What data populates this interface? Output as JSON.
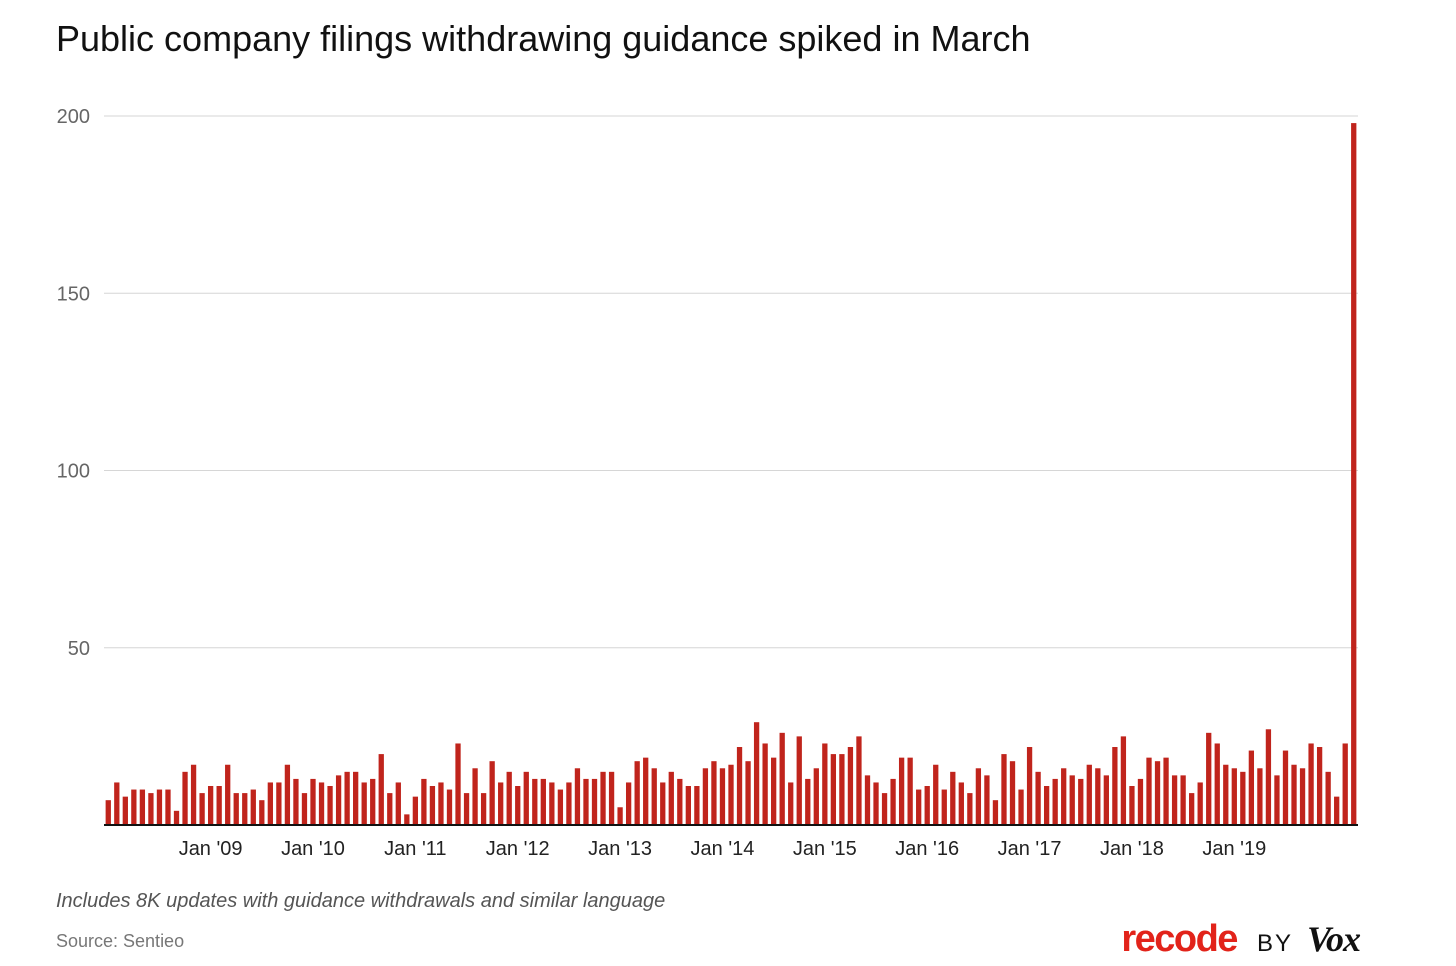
{
  "chart_data": {
    "type": "bar",
    "title": "Public company filings withdrawing guidance spiked in March",
    "xlabel": "",
    "ylabel": "",
    "ylim": [
      0,
      200
    ],
    "yticks": [
      50,
      100,
      150,
      200
    ],
    "grid": true,
    "legend": "none",
    "bar_color": "#c0241c",
    "x_start": "2008-01",
    "x_end": "2020-03",
    "xtick_labels": [
      "Jan '09",
      "Jan '10",
      "Jan '11",
      "Jan '12",
      "Jan '13",
      "Jan '14",
      "Jan '15",
      "Jan '16",
      "Jan '17",
      "Jan '18",
      "Jan '19"
    ],
    "values": [
      7,
      12,
      8,
      10,
      10,
      9,
      10,
      10,
      4,
      15,
      17,
      9,
      11,
      11,
      17,
      9,
      9,
      10,
      7,
      12,
      12,
      17,
      13,
      9,
      13,
      12,
      11,
      14,
      15,
      15,
      12,
      13,
      20,
      9,
      12,
      3,
      8,
      13,
      11,
      12,
      10,
      23,
      9,
      16,
      9,
      18,
      12,
      15,
      11,
      15,
      13,
      13,
      12,
      10,
      12,
      16,
      13,
      13,
      15,
      15,
      5,
      12,
      18,
      19,
      16,
      12,
      15,
      13,
      11,
      11,
      16,
      18,
      16,
      17,
      22,
      18,
      29,
      23,
      19,
      26,
      12,
      25,
      13,
      16,
      23,
      20,
      20,
      22,
      25,
      14,
      12,
      9,
      13,
      19,
      19,
      10,
      11,
      17,
      10,
      15,
      12,
      9,
      16,
      14,
      7,
      20,
      18,
      10,
      22,
      15,
      11,
      13,
      16,
      14,
      13,
      17,
      16,
      14,
      22,
      25,
      11,
      13,
      19,
      18,
      19,
      14,
      14,
      9,
      12,
      26,
      23,
      17,
      16,
      15,
      21,
      16,
      27,
      14,
      21,
      17,
      16,
      23,
      22,
      15,
      8,
      23,
      198
    ]
  },
  "note": "Includes 8K updates with guidance withdrawals and similar language",
  "source": "Source: Sentieo",
  "logo": {
    "recode": "recode",
    "by": "BY",
    "vox": "Vox"
  }
}
